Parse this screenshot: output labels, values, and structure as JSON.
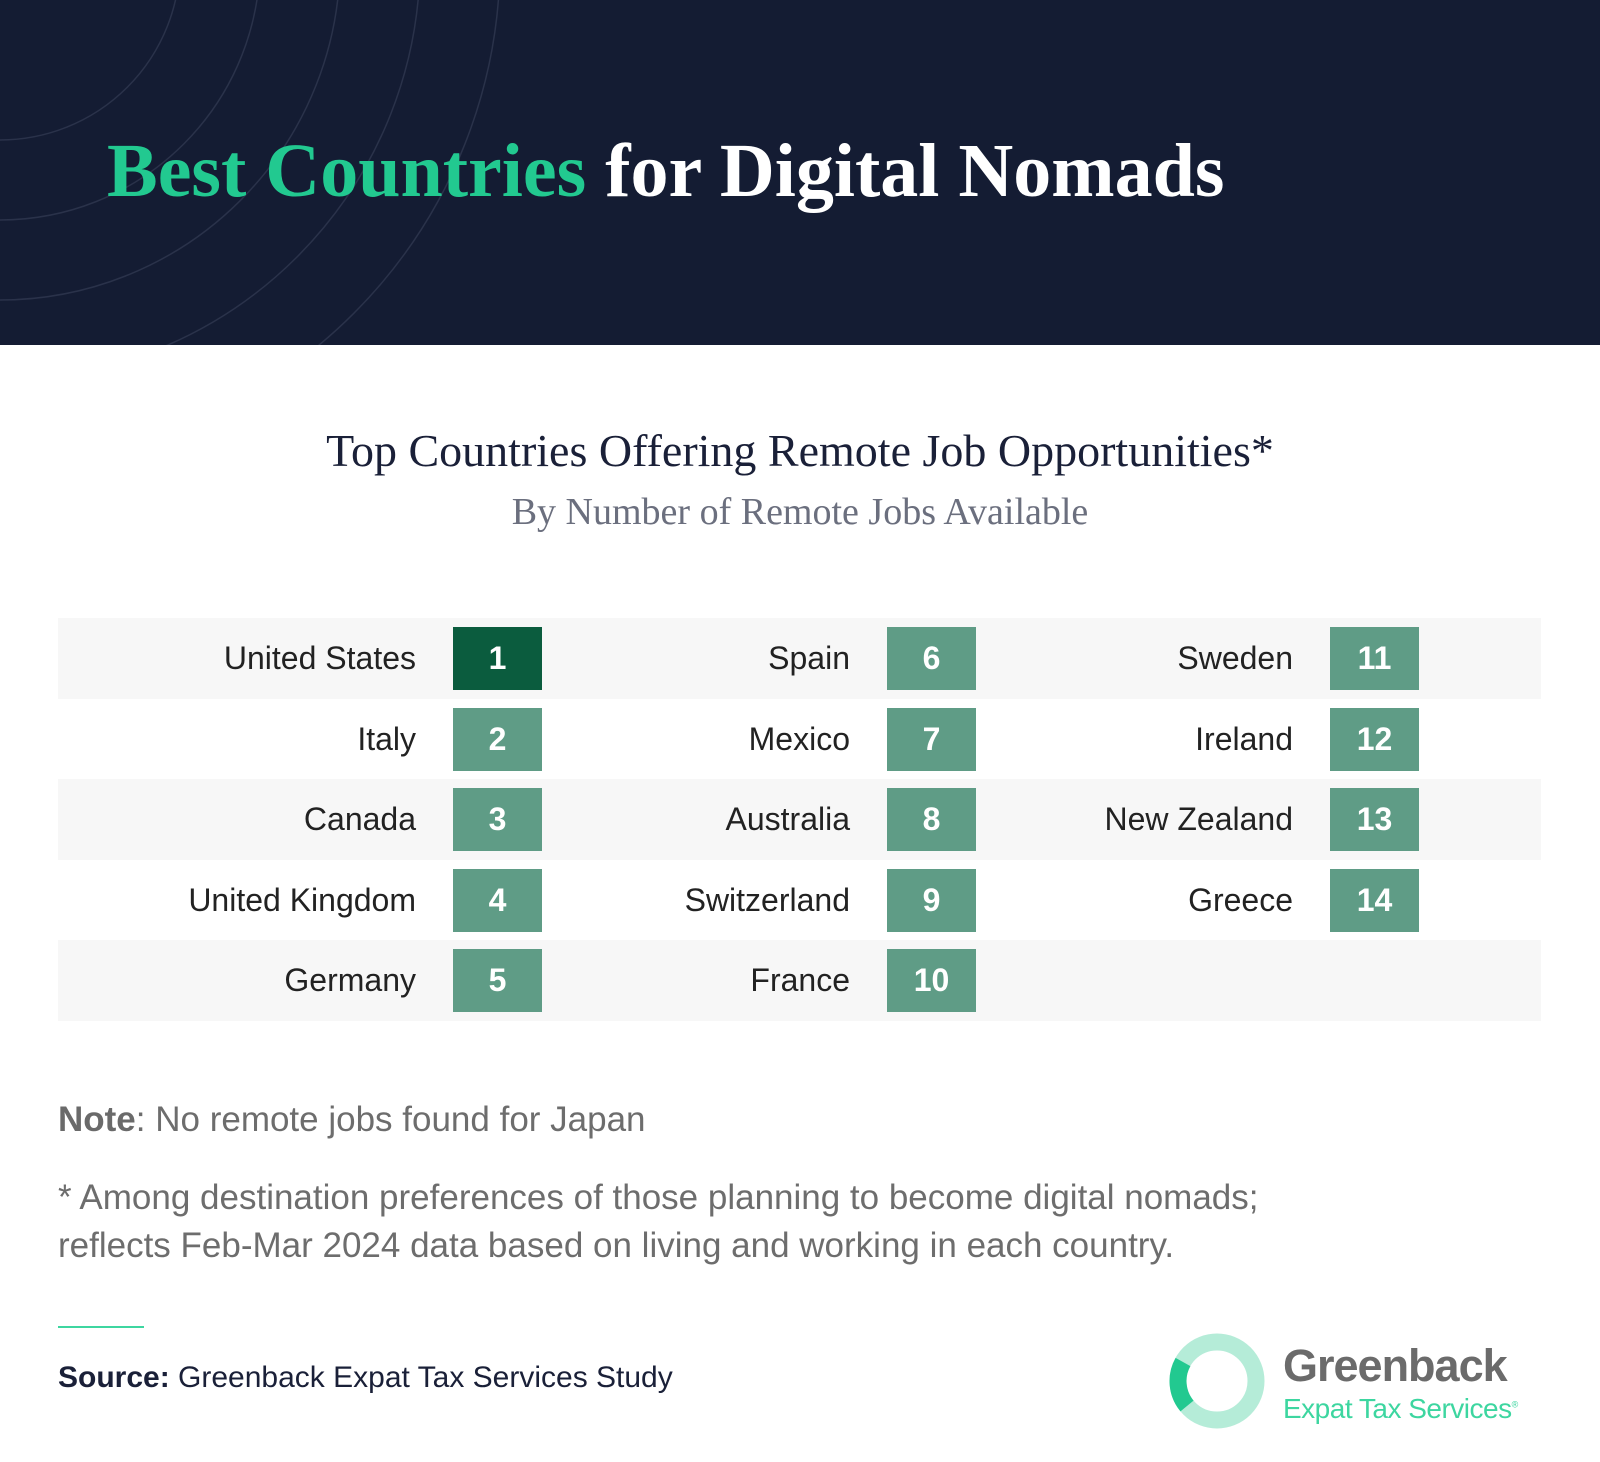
{
  "header": {
    "title_highlight": "Best Countries",
    "title_rest": "for Digital Nomads"
  },
  "subtitle": "Top Countries Offering Remote Job Opportunities*",
  "subtitle_detail": "By Number of Remote Jobs Available",
  "table": {
    "rows": [
      {
        "country": "United States",
        "rank": 1
      },
      {
        "country": "Italy",
        "rank": 2
      },
      {
        "country": "Canada",
        "rank": 3
      },
      {
        "country": "United Kingdom",
        "rank": 4
      },
      {
        "country": "Germany",
        "rank": 5
      },
      {
        "country": "Spain",
        "rank": 6
      },
      {
        "country": "Mexico",
        "rank": 7
      },
      {
        "country": "Australia",
        "rank": 8
      },
      {
        "country": "Switzerland",
        "rank": 9
      },
      {
        "country": "France",
        "rank": 10
      },
      {
        "country": "Sweden",
        "rank": 11
      },
      {
        "country": "Ireland",
        "rank": 12
      },
      {
        "country": "New Zealand",
        "rank": 13
      },
      {
        "country": "Greece",
        "rank": 14
      }
    ]
  },
  "note": {
    "label": "Note",
    "text": ": No remote jobs found for Japan"
  },
  "footnote_lines": [
    "* Among destination preferences of those planning to become digital nomads;",
    "reflects Feb-Mar 2024 data based on living and working in each country."
  ],
  "source": {
    "label": "Source:",
    "text": "Greenback Expat Tax Services Study"
  },
  "logo": {
    "name": "Greenback",
    "tagline": "Expat Tax Services",
    "mark": "®"
  }
}
